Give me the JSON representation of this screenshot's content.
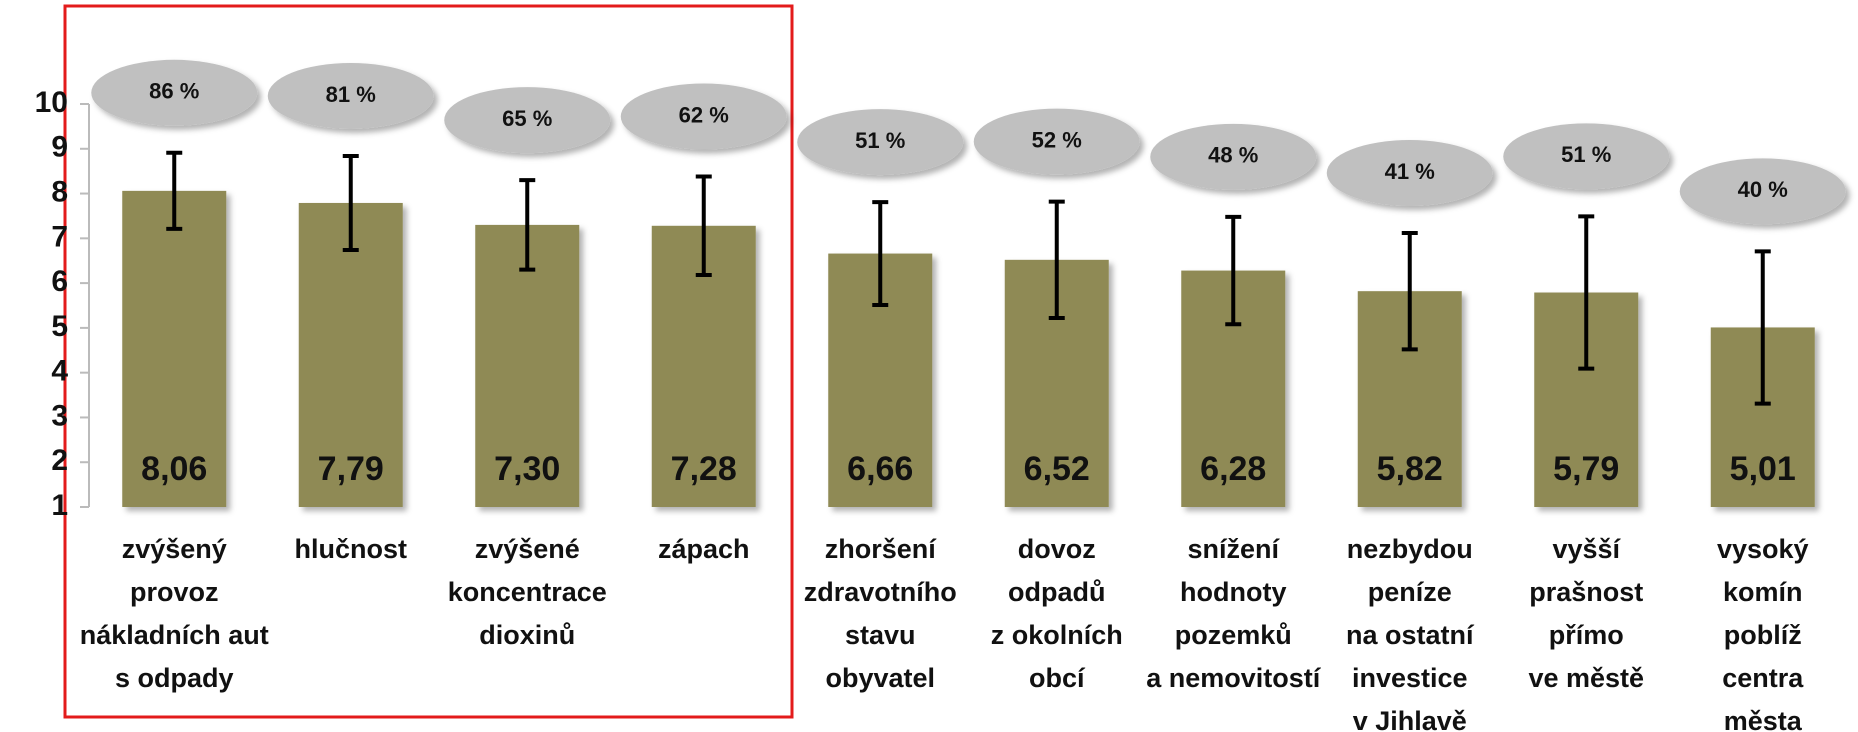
{
  "chart_data": {
    "type": "bar",
    "categories": [
      [
        "zvýšený",
        "provoz",
        "nákladních aut",
        "s odpady"
      ],
      [
        "hlučnost"
      ],
      [
        "zvýšené",
        "koncentrace",
        "dioxinů"
      ],
      [
        "zápach"
      ],
      [
        "zhoršení",
        "zdravotního",
        "stavu",
        "obyvatel"
      ],
      [
        "dovoz",
        "odpadů",
        "z okolních",
        "obcí"
      ],
      [
        "snížení",
        "hodnoty",
        "pozemků",
        "a nemovitostí"
      ],
      [
        "nezbydou",
        "peníze",
        "na ostatní",
        "investice",
        "v Jihlavě"
      ],
      [
        "vyšší",
        "prašnost",
        "přímo",
        "ve městě"
      ],
      [
        "vysoký",
        "komín",
        "poblíž",
        "centra",
        "města"
      ]
    ],
    "values": [
      8.06,
      7.79,
      7.3,
      7.28,
      6.66,
      6.52,
      6.28,
      5.82,
      5.79,
      5.01
    ],
    "value_labels": [
      "8,06",
      "7,79",
      "7,30",
      "7,28",
      "6,66",
      "6,52",
      "6,28",
      "5,82",
      "5,79",
      "5,01"
    ],
    "errors": [
      0.85,
      1.05,
      1.0,
      1.1,
      1.15,
      1.3,
      1.2,
      1.3,
      1.7,
      1.7
    ],
    "percentages": [
      86,
      81,
      65,
      62,
      51,
      52,
      48,
      41,
      51,
      40
    ],
    "percentage_labels": [
      "86 %",
      "81 %",
      "65 %",
      "62 %",
      "51 %",
      "52 %",
      "48 %",
      "41 %",
      "51 %",
      "40 %"
    ],
    "color": "#8f8a55",
    "ylim": [
      1,
      10
    ],
    "yticks": [
      1,
      2,
      3,
      4,
      5,
      6,
      7,
      8,
      9,
      10
    ]
  }
}
